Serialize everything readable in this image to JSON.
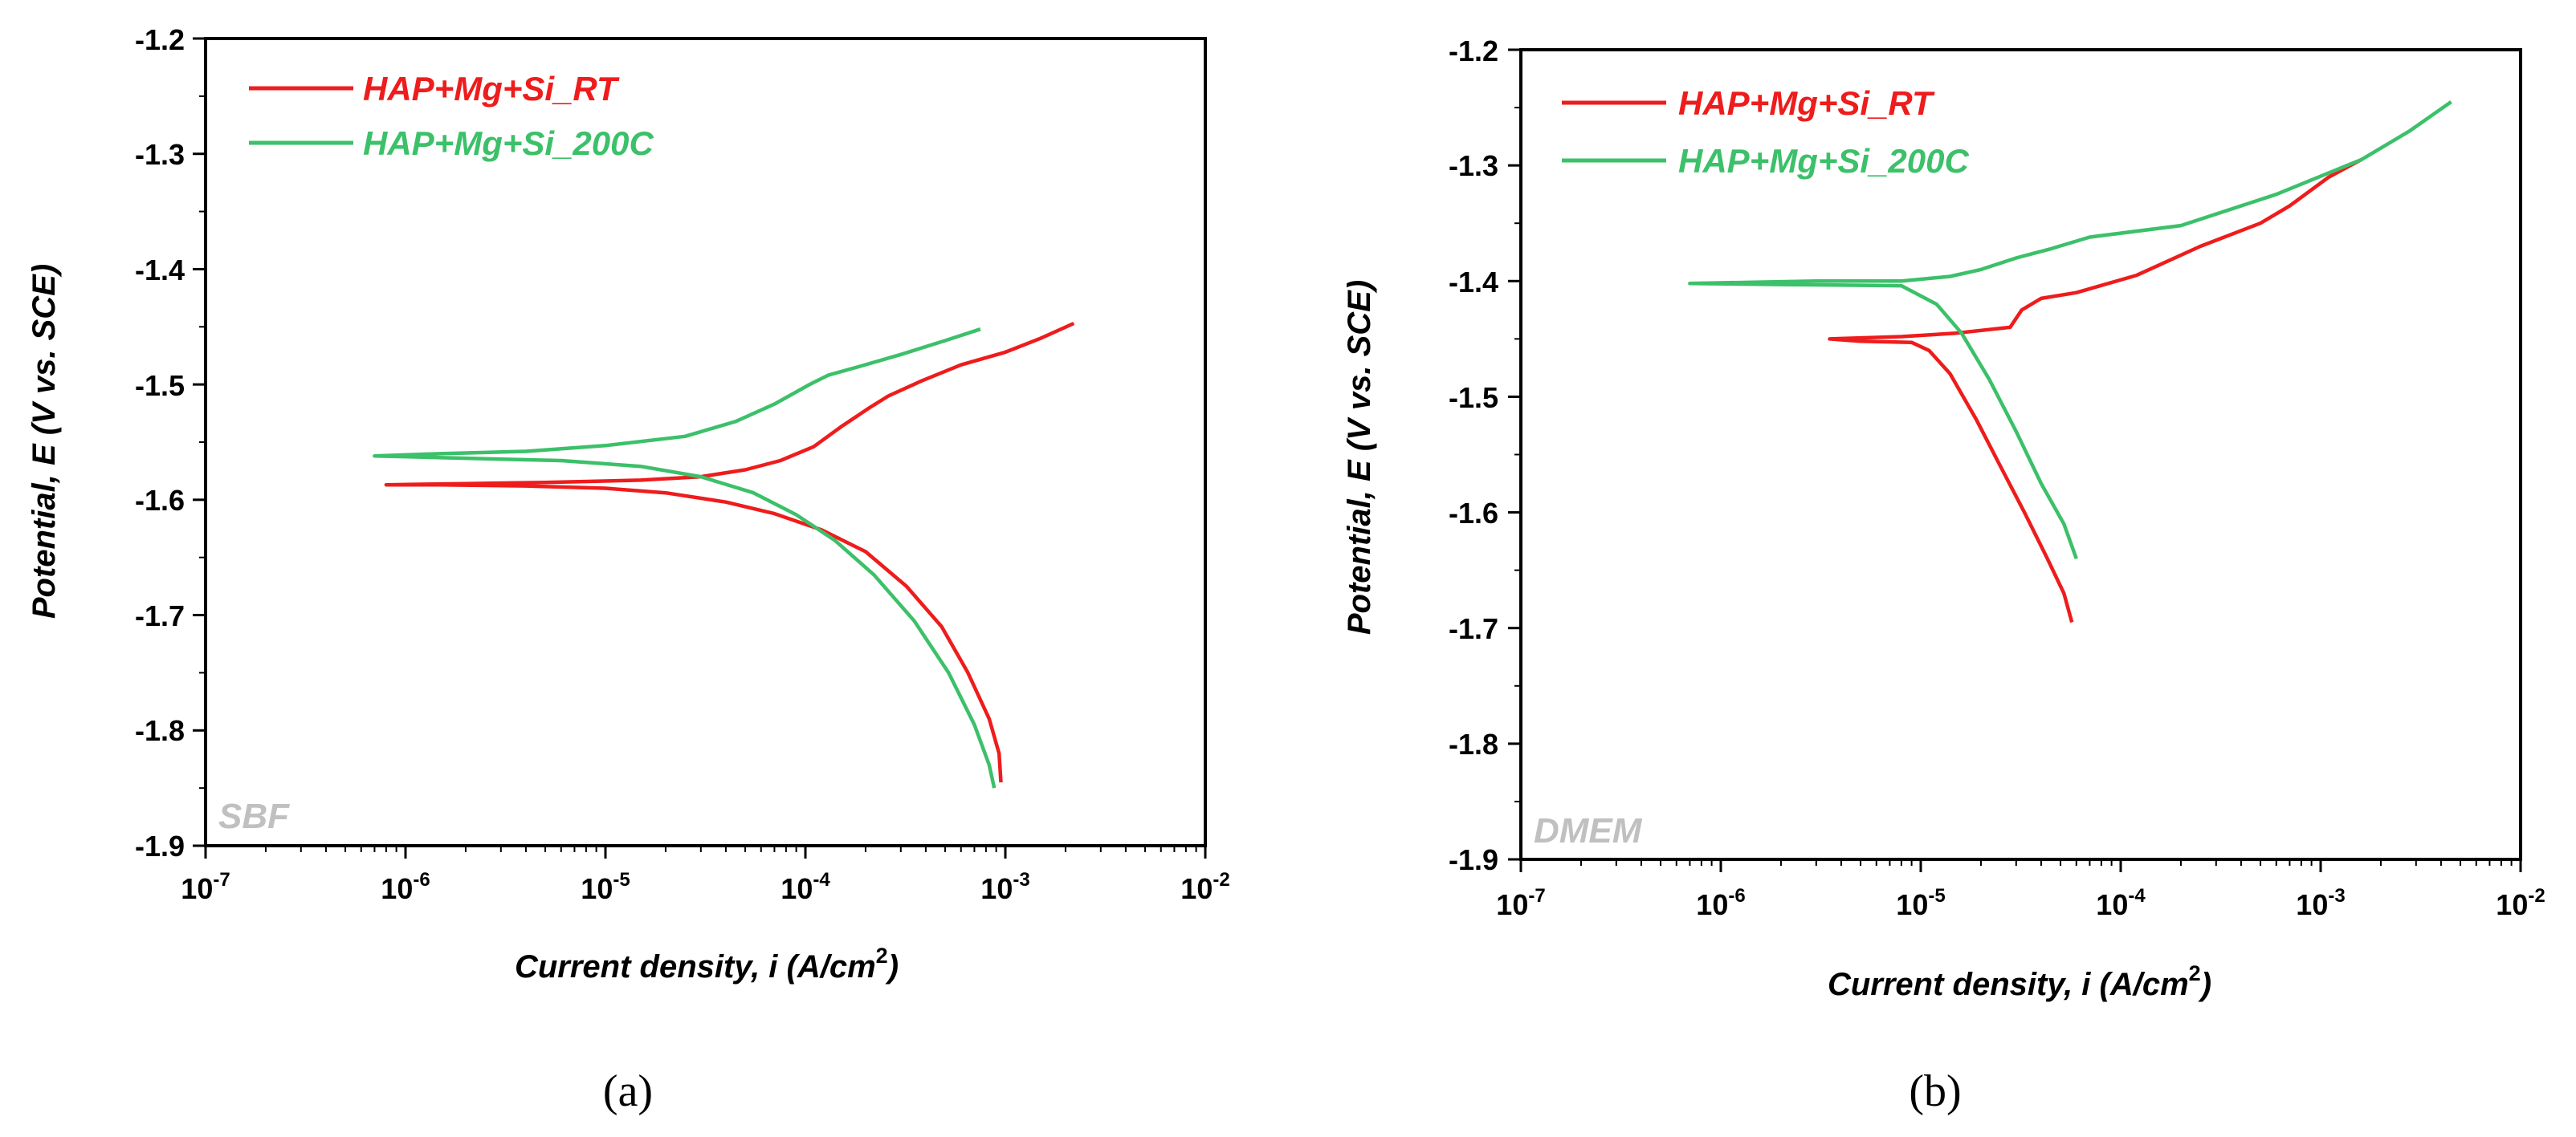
{
  "chart_data": [
    {
      "type": "line",
      "panel": "(a)",
      "medium": "SBF",
      "xlabel": "Current density, i (A/cm",
      "xlabel_sup": "2",
      "xlabel_close": ")",
      "ylabel": "Potential, E (V vs. SCE)",
      "xscale": "log",
      "xlim": [
        1e-07,
        0.01
      ],
      "ylim": [
        -1.9,
        -1.2
      ],
      "x_ticks": [
        {
          "base": "10",
          "exp": "-7",
          "value": 1e-07
        },
        {
          "base": "10",
          "exp": "-6",
          "value": 1e-06
        },
        {
          "base": "10",
          "exp": "-5",
          "value": 1e-05
        },
        {
          "base": "10",
          "exp": "-4",
          "value": 0.0001
        },
        {
          "base": "10",
          "exp": "-3",
          "value": 0.001
        },
        {
          "base": "10",
          "exp": "-2",
          "value": 0.01
        }
      ],
      "y_ticks": [
        "-1.9",
        "-1.8",
        "-1.7",
        "-1.6",
        "-1.5",
        "-1.4",
        "-1.3",
        "-1.2"
      ],
      "legend_position": "top-left",
      "series": [
        {
          "name": "HAP+Mg+Si_RT",
          "color": "#ee1c1c",
          "points": [
            [
              0.0022,
              -1.447
            ],
            [
              0.0015,
              -1.46
            ],
            [
              0.001,
              -1.472
            ],
            [
              0.0006,
              -1.483
            ],
            [
              0.00038,
              -1.497
            ],
            [
              0.00026,
              -1.51
            ],
            [
              0.00021,
              -1.52
            ],
            [
              0.00015,
              -1.537
            ],
            [
              0.00011,
              -1.554
            ],
            [
              7.5e-05,
              -1.566
            ],
            [
              5e-05,
              -1.574
            ],
            [
              3e-05,
              -1.58
            ],
            [
              1.5e-05,
              -1.583
            ],
            [
              5e-06,
              -1.585
            ],
            [
              2e-06,
              -1.586
            ],
            [
              8e-07,
              -1.587
            ],
            [
              1.5e-06,
              -1.587
            ],
            [
              4e-06,
              -1.588
            ],
            [
              1e-05,
              -1.59
            ],
            [
              2e-05,
              -1.594
            ],
            [
              4e-05,
              -1.602
            ],
            [
              7e-05,
              -1.612
            ],
            [
              0.00012,
              -1.626
            ],
            [
              0.0002,
              -1.645
            ],
            [
              0.00032,
              -1.675
            ],
            [
              0.00048,
              -1.71
            ],
            [
              0.00065,
              -1.75
            ],
            [
              0.00083,
              -1.79
            ],
            [
              0.00093,
              -1.82
            ],
            [
              0.00095,
              -1.845
            ]
          ]
        },
        {
          "name": "HAP+Mg+Si_200C",
          "color": "#3cc06a",
          "points": [
            [
              0.00075,
              -1.452
            ],
            [
              0.0005,
              -1.462
            ],
            [
              0.0003,
              -1.474
            ],
            [
              0.00019,
              -1.484
            ],
            [
              0.00013,
              -1.492
            ],
            [
              0.000105,
              -1.5
            ],
            [
              7e-05,
              -1.517
            ],
            [
              4.5e-05,
              -1.532
            ],
            [
              2.5e-05,
              -1.545
            ],
            [
              1e-05,
              -1.553
            ],
            [
              4e-06,
              -1.558
            ],
            [
              1.5e-06,
              -1.56
            ],
            [
              7e-07,
              -1.562
            ],
            [
              2e-06,
              -1.564
            ],
            [
              6e-06,
              -1.566
            ],
            [
              1.5e-05,
              -1.571
            ],
            [
              3e-05,
              -1.58
            ],
            [
              5.5e-05,
              -1.594
            ],
            [
              9e-05,
              -1.613
            ],
            [
              0.00014,
              -1.635
            ],
            [
              0.00022,
              -1.665
            ],
            [
              0.00035,
              -1.705
            ],
            [
              0.00052,
              -1.75
            ],
            [
              0.0007,
              -1.795
            ],
            [
              0.00083,
              -1.83
            ],
            [
              0.00088,
              -1.85
            ]
          ]
        }
      ]
    },
    {
      "type": "line",
      "panel": "(b)",
      "medium": "DMEM",
      "xlabel": "Current density, i (A/cm",
      "xlabel_sup": "2",
      "xlabel_close": ")",
      "ylabel": "Potential, E (V vs. SCE)",
      "xscale": "log",
      "xlim": [
        1e-07,
        0.01
      ],
      "ylim": [
        -1.9,
        -1.2
      ],
      "x_ticks": [
        {
          "base": "10",
          "exp": "-7",
          "value": 1e-07
        },
        {
          "base": "10",
          "exp": "-6",
          "value": 1e-06
        },
        {
          "base": "10",
          "exp": "-5",
          "value": 1e-05
        },
        {
          "base": "10",
          "exp": "-4",
          "value": 0.0001
        },
        {
          "base": "10",
          "exp": "-3",
          "value": 0.001
        },
        {
          "base": "10",
          "exp": "-2",
          "value": 0.01
        }
      ],
      "y_ticks": [
        "-1.9",
        "-1.8",
        "-1.7",
        "-1.6",
        "-1.5",
        "-1.4",
        "-1.3",
        "-1.2"
      ],
      "legend_position": "top-left",
      "series": [
        {
          "name": "HAP+Mg+Si_RT",
          "color": "#ee1c1c",
          "points": [
            [
              0.0016,
              -1.295
            ],
            [
              0.0011,
              -1.31
            ],
            [
              0.0007,
              -1.335
            ],
            [
              0.0005,
              -1.35
            ],
            [
              0.00025,
              -1.37
            ],
            [
              0.00012,
              -1.395
            ],
            [
              6e-05,
              -1.41
            ],
            [
              4e-05,
              -1.415
            ],
            [
              3.2e-05,
              -1.425
            ],
            [
              2.8e-05,
              -1.44
            ],
            [
              1.5e-05,
              -1.445
            ],
            [
              8e-06,
              -1.448
            ],
            [
              3.5e-06,
              -1.45
            ],
            [
              5e-06,
              -1.452
            ],
            [
              9e-06,
              -1.453
            ],
            [
              1.1e-05,
              -1.46
            ],
            [
              1.4e-05,
              -1.48
            ],
            [
              1.9e-05,
              -1.52
            ],
            [
              2.5e-05,
              -1.56
            ],
            [
              3.3e-05,
              -1.6
            ],
            [
              4.3e-05,
              -1.64
            ],
            [
              5.2e-05,
              -1.67
            ],
            [
              5.7e-05,
              -1.695
            ]
          ]
        },
        {
          "name": "HAP+Mg+Si_200C",
          "color": "#3cc06a",
          "points": [
            [
              0.0045,
              -1.245
            ],
            [
              0.0028,
              -1.27
            ],
            [
              0.0016,
              -1.295
            ],
            [
              0.0006,
              -1.325
            ],
            [
              0.0002,
              -1.352
            ],
            [
              7e-05,
              -1.362
            ],
            [
              4.5e-05,
              -1.372
            ],
            [
              3e-05,
              -1.38
            ],
            [
              2e-05,
              -1.39
            ],
            [
              1.4e-05,
              -1.396
            ],
            [
              8e-06,
              -1.4
            ],
            [
              3e-06,
              -1.4
            ],
            [
              7e-07,
              -1.402
            ],
            [
              2e-06,
              -1.403
            ],
            [
              8e-06,
              -1.404
            ],
            [
              1.2e-05,
              -1.42
            ],
            [
              1.6e-05,
              -1.445
            ],
            [
              2.2e-05,
              -1.485
            ],
            [
              3e-05,
              -1.53
            ],
            [
              4e-05,
              -1.575
            ],
            [
              5.2e-05,
              -1.61
            ],
            [
              6e-05,
              -1.64
            ]
          ]
        }
      ]
    }
  ]
}
